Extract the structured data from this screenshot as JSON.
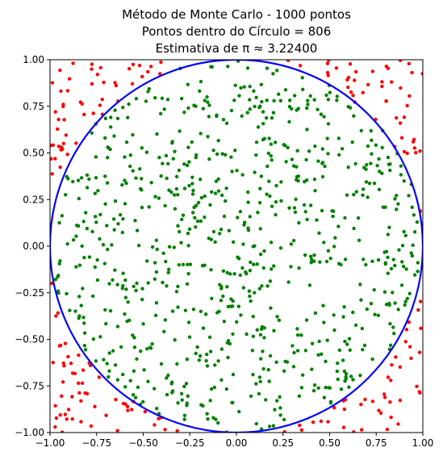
{
  "chart_data": {
    "type": "scatter",
    "title_lines": [
      "Método de Monte Carlo - 1000 pontos",
      "Pontos dentro do Círculo = 806",
      "Estimativa de π ≈ 3.22400"
    ],
    "xlabel": "",
    "ylabel": "",
    "xlim": [
      -1.0,
      1.0
    ],
    "ylim": [
      -1.0,
      1.0
    ],
    "x_ticks": [
      "−1.00",
      "−0.75",
      "−0.50",
      "−0.25",
      "0.00",
      "0.25",
      "0.50",
      "0.75",
      "1.00"
    ],
    "y_ticks": [
      "−1.00",
      "−0.75",
      "−0.50",
      "−0.25",
      "0.00",
      "0.25",
      "0.50",
      "0.75",
      "1.00"
    ],
    "x_tick_values": [
      -1.0,
      -0.75,
      -0.5,
      -0.25,
      0.0,
      0.25,
      0.5,
      0.75,
      1.0
    ],
    "y_tick_values": [
      -1.0,
      -0.75,
      -0.5,
      -0.25,
      0.0,
      0.25,
      0.5,
      0.75,
      1.0
    ],
    "grid": false,
    "total_points": 1000,
    "inside_points": 806,
    "series": [
      {
        "role": "inside",
        "color": "#008000",
        "count": 806
      },
      {
        "role": "outside",
        "color": "#ff0000",
        "count": 194
      }
    ],
    "circle": {
      "center": [
        0,
        0
      ],
      "radius": 1,
      "color": "#0000ff"
    }
  }
}
